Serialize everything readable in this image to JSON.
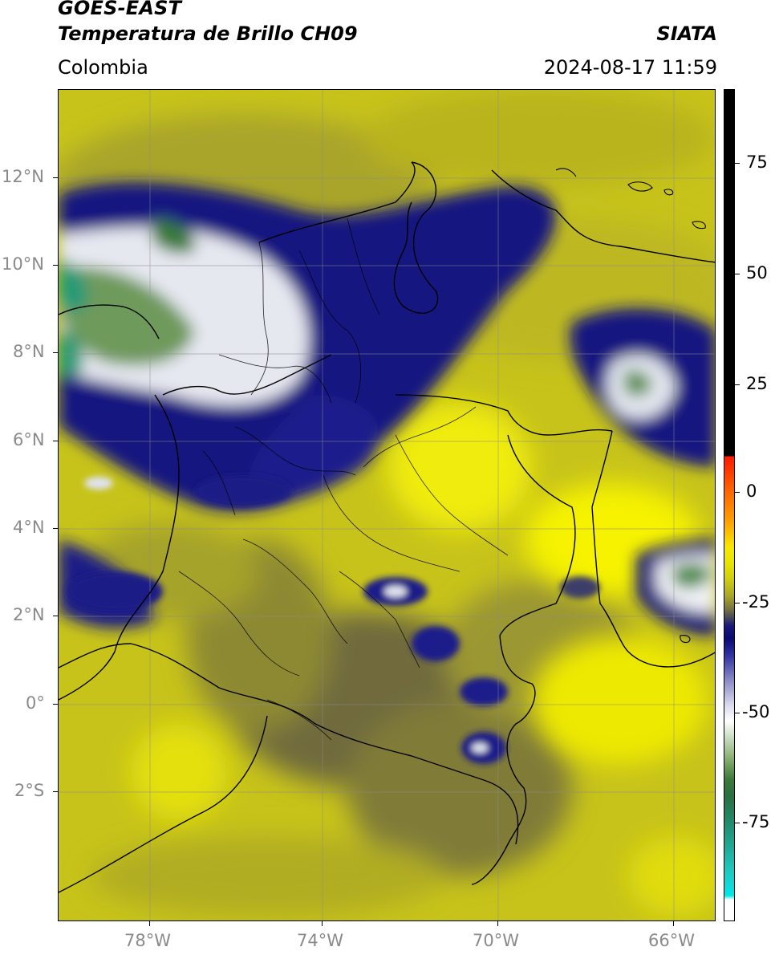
{
  "header": {
    "satellite": "GOES-EAST",
    "product": "Temperatura de Brillo CH09",
    "region": "Colombia",
    "source": "SIATA",
    "datetime": "2024-08-17 11:59"
  },
  "map": {
    "lat_labels": [
      "12°N",
      "10°N",
      "8°N",
      "6°N",
      "4°N",
      "2°N",
      "0°",
      "2°S"
    ],
    "lon_labels": [
      "78°W",
      "74°W",
      "70°W",
      "66°W"
    ],
    "extent": {
      "lon_min": -80.1,
      "lon_max": -65.1,
      "lat_min": -5.2,
      "lat_max": 13.9
    }
  },
  "colorbar": {
    "ticks": [
      "75",
      "50",
      "25",
      "0",
      "-25",
      "-50",
      "-75"
    ],
    "range": [
      -95,
      90
    ],
    "colors": {
      "warm": "#000000",
      "red": "#ff2a00",
      "orange": "#ff9a00",
      "yellow": "#f4f000",
      "olive": "#6b6b30",
      "navy": "#0a0a7a",
      "white": "#ffffff",
      "green": "#3a7a3a",
      "teal": "#20a080",
      "cyan": "#00e0e0"
    }
  }
}
